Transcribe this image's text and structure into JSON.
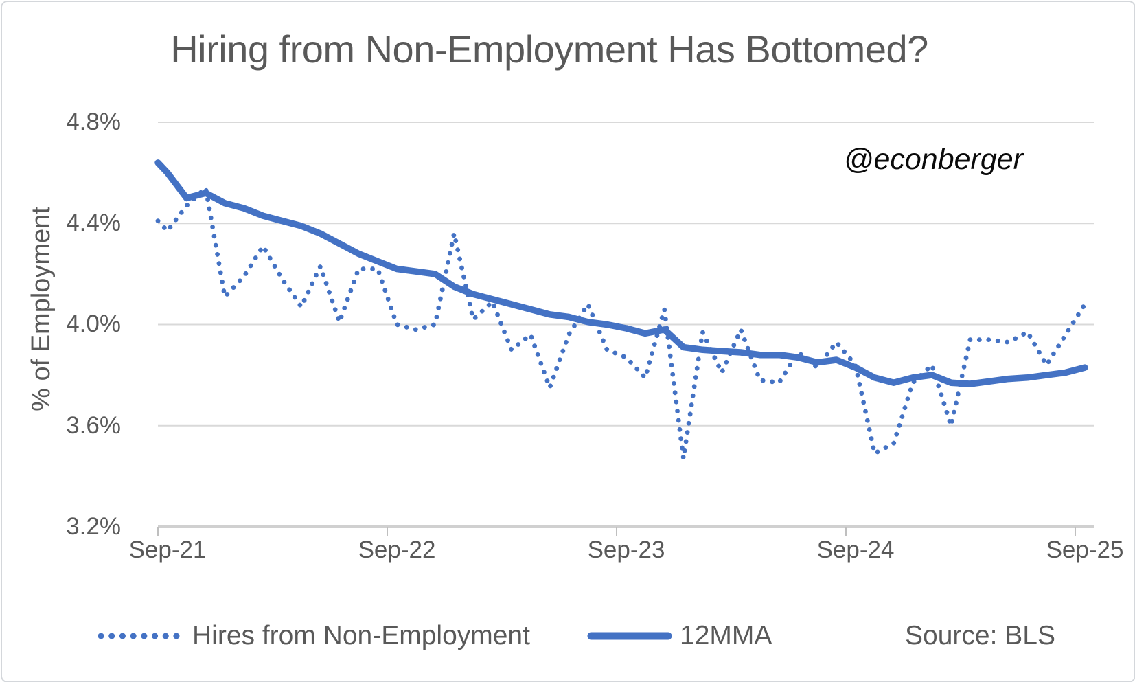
{
  "colors": {
    "series": "#4472C4",
    "grid": "#D9D9D9",
    "axis_line": "#D0D0D0",
    "tick": "#BFBFBF",
    "text": "#595959",
    "watermark": "#0a0a0a"
  },
  "chart_data": {
    "type": "line",
    "title": "Hiring from Non-Employment Has Bottomed?",
    "annotation": "@econberger",
    "source": "Source: BLS",
    "ylabel": "% of Employment",
    "xlabel": "",
    "grid": "horizontal-on",
    "legend_position": "bottom",
    "ylim": [
      3.2,
      4.8
    ],
    "y_tick_values": [
      4.8,
      4.4,
      4.0,
      3.6,
      3.2
    ],
    "y_tick_labels": [
      "4.8%",
      "4.4%",
      "4.0%",
      "3.6%",
      "3.2%"
    ],
    "x_tick_labels": [
      "Sep-21",
      "Sep-22",
      "Sep-23",
      "Sep-24",
      "Sep-25"
    ],
    "x": [
      "Sep-21",
      "Oct-21",
      "Nov-21",
      "Dec-21",
      "Jan-22",
      "Feb-22",
      "Mar-22",
      "Apr-22",
      "May-22",
      "Jun-22",
      "Jul-22",
      "Aug-22",
      "Sep-22",
      "Oct-22",
      "Nov-22",
      "Dec-22",
      "Jan-23",
      "Feb-23",
      "Mar-23",
      "Apr-23",
      "May-23",
      "Jun-23",
      "Jul-23",
      "Aug-23",
      "Sep-23",
      "Oct-23",
      "Nov-23",
      "Dec-23",
      "Jan-24",
      "Feb-24",
      "Mar-24",
      "Apr-24",
      "May-24",
      "Jun-24",
      "Jul-24",
      "Aug-24",
      "Sep-24",
      "Oct-24",
      "Nov-24",
      "Dec-24",
      "Jan-25",
      "Feb-25",
      "Mar-25",
      "Apr-25",
      "May-25",
      "Jun-25",
      "Jul-25",
      "Aug-25",
      "Sep-25"
    ],
    "series": [
      {
        "name": "Hires from Non-Employment",
        "style": "dotted",
        "lead_in": 4.41,
        "values": [
          4.37,
          4.47,
          4.54,
          4.11,
          4.19,
          4.31,
          4.18,
          4.07,
          4.23,
          4.01,
          4.22,
          4.22,
          4.0,
          3.98,
          4.0,
          4.36,
          4.02,
          4.09,
          3.9,
          3.96,
          3.75,
          3.96,
          4.08,
          3.9,
          3.87,
          3.79,
          4.06,
          3.47,
          3.97,
          3.81,
          3.98,
          3.78,
          3.77,
          3.89,
          3.83,
          3.93,
          3.84,
          3.49,
          3.53,
          3.77,
          3.84,
          3.6,
          3.94,
          3.94,
          3.93,
          3.97,
          3.84,
          3.96,
          4.08
        ]
      },
      {
        "name": "12MMA",
        "style": "solid",
        "lead_in": 4.64,
        "values": [
          4.6,
          4.5,
          4.52,
          4.48,
          4.46,
          4.43,
          4.41,
          4.39,
          4.36,
          4.32,
          4.28,
          4.25,
          4.22,
          4.21,
          4.2,
          4.15,
          4.12,
          4.1,
          4.08,
          4.06,
          4.04,
          4.03,
          4.01,
          4.0,
          3.985,
          3.965,
          3.98,
          3.91,
          3.9,
          3.895,
          3.89,
          3.88,
          3.88,
          3.87,
          3.85,
          3.86,
          3.83,
          3.79,
          3.77,
          3.79,
          3.8,
          3.77,
          3.765,
          3.775,
          3.785,
          3.79,
          3.8,
          3.81,
          3.83
        ]
      }
    ]
  }
}
